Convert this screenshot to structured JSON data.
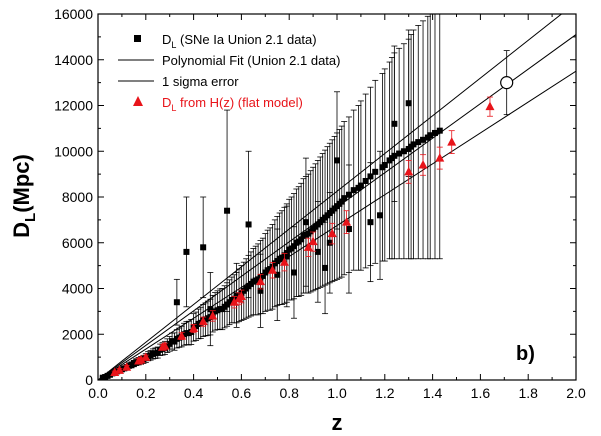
{
  "chart_data": {
    "type": "scatter",
    "panel_label": "b)",
    "xlabel": "z",
    "ylabel_main": "D",
    "ylabel_sub": "L",
    "ylabel_unit": "(Mpc)",
    "xlim": [
      0.0,
      2.0
    ],
    "ylim": [
      0,
      16000
    ],
    "x_ticks": [
      "0.0",
      "0.2",
      "0.4",
      "0.6",
      "0.8",
      "1.0",
      "1.2",
      "1.4",
      "1.6",
      "1.8",
      "2.0"
    ],
    "y_ticks": [
      "0",
      "2000",
      "4000",
      "6000",
      "8000",
      "10000",
      "12000",
      "14000",
      "16000"
    ],
    "grid": false,
    "legend_position": "top-left",
    "legend": [
      {
        "main": "D",
        "sub": "L",
        "rest": "  (SNe Ia Union 2.1 data)",
        "marker": "square",
        "color": "#000000"
      },
      {
        "main": "Polynomial Fit (Union 2.1 data)",
        "sub": "",
        "rest": "",
        "marker": "line",
        "color": "#000000"
      },
      {
        "main": "1 sigma error",
        "sub": "",
        "rest": "",
        "marker": "line",
        "color": "#000000"
      },
      {
        "main": "D",
        "sub": "L",
        "rest": " from H(z) (flat model)",
        "marker": "triangle",
        "color": "#e8141a"
      }
    ],
    "series": [
      {
        "name": "DL (SNe Ia Union 2.1 data)",
        "marker": "square",
        "color": "#000000",
        "x": [
          0.02,
          0.03,
          0.04,
          0.05,
          0.06,
          0.07,
          0.08,
          0.09,
          0.1,
          0.11,
          0.12,
          0.13,
          0.14,
          0.15,
          0.16,
          0.17,
          0.18,
          0.19,
          0.2,
          0.21,
          0.22,
          0.23,
          0.24,
          0.25,
          0.26,
          0.27,
          0.28,
          0.29,
          0.3,
          0.31,
          0.32,
          0.33,
          0.34,
          0.35,
          0.36,
          0.37,
          0.38,
          0.39,
          0.4,
          0.41,
          0.42,
          0.43,
          0.44,
          0.45,
          0.46,
          0.47,
          0.48,
          0.49,
          0.5,
          0.51,
          0.52,
          0.53,
          0.54,
          0.55,
          0.56,
          0.57,
          0.58,
          0.59,
          0.6,
          0.61,
          0.62,
          0.63,
          0.64,
          0.65,
          0.66,
          0.67,
          0.68,
          0.69,
          0.7,
          0.71,
          0.72,
          0.73,
          0.74,
          0.75,
          0.76,
          0.77,
          0.78,
          0.79,
          0.8,
          0.81,
          0.82,
          0.83,
          0.84,
          0.85,
          0.86,
          0.87,
          0.88,
          0.89,
          0.9,
          0.91,
          0.92,
          0.93,
          0.94,
          0.95,
          0.96,
          0.97,
          0.98,
          0.99,
          1.0,
          1.01,
          1.02,
          1.03,
          1.05,
          1.07,
          1.09,
          1.1,
          1.12,
          1.14,
          1.16,
          1.19,
          1.2,
          1.22,
          1.23,
          1.24,
          1.26,
          1.28,
          1.3,
          1.31,
          1.32,
          1.34,
          1.36,
          1.38,
          1.39,
          1.41,
          1.43,
          0.54,
          0.37,
          0.33,
          0.44,
          0.47,
          0.63,
          0.58,
          0.75,
          0.87,
          0.95,
          1.0,
          0.97,
          1.05,
          1.14,
          1.18,
          1.24,
          1.3,
          0.92,
          0.82,
          0.68,
          0.79
        ],
        "y": [
          100,
          130,
          180,
          230,
          290,
          330,
          380,
          420,
          470,
          510,
          560,
          630,
          660,
          720,
          780,
          820,
          860,
          900,
          960,
          1040,
          1080,
          1140,
          1170,
          1200,
          1320,
          1360,
          1400,
          1500,
          1580,
          1700,
          1680,
          1800,
          1850,
          1900,
          2000,
          2050,
          2050,
          2100,
          2300,
          2350,
          2450,
          2500,
          2600,
          2650,
          2700,
          2750,
          2900,
          3000,
          3050,
          3100,
          3100,
          3200,
          3300,
          3400,
          3500,
          3550,
          3600,
          3700,
          3800,
          3900,
          4000,
          4100,
          4200,
          4300,
          4350,
          4400,
          4500,
          4550,
          4700,
          4800,
          4850,
          4950,
          5100,
          5200,
          5300,
          5350,
          5450,
          5550,
          5700,
          5750,
          5850,
          6000,
          6050,
          6150,
          6300,
          6350,
          6400,
          6500,
          6600,
          6700,
          6800,
          6900,
          7000,
          7100,
          7200,
          7300,
          7400,
          7500,
          7600,
          7700,
          7800,
          7950,
          8100,
          8300,
          8400,
          8500,
          8700,
          8900,
          9100,
          9300,
          9400,
          9600,
          9700,
          9800,
          9900,
          10000,
          10100,
          10200,
          10300,
          10400,
          10500,
          10600,
          10700,
          10800,
          10900,
          7400,
          5600,
          3400,
          5800,
          3100,
          6800,
          3700,
          4600,
          6900,
          4900,
          9600,
          6000,
          6600,
          6900,
          7200,
          11200,
          12100,
          5600,
          4700,
          3900,
          5400
        ],
        "yerr": [
          30,
          30,
          40,
          50,
          60,
          60,
          70,
          80,
          90,
          100,
          110,
          120,
          130,
          140,
          150,
          160,
          170,
          180,
          190,
          200,
          210,
          220,
          230,
          240,
          250,
          270,
          290,
          300,
          320,
          350,
          380,
          400,
          420,
          450,
          480,
          500,
          520,
          550,
          600,
          620,
          650,
          680,
          700,
          720,
          750,
          780,
          800,
          820,
          850,
          880,
          900,
          920,
          950,
          980,
          1000,
          1050,
          1100,
          1150,
          1200,
          1250,
          1300,
          1350,
          1400,
          1450,
          1500,
          1550,
          1600,
          1650,
          1700,
          1750,
          1800,
          1850,
          1900,
          1950,
          2000,
          2050,
          2100,
          2150,
          2200,
          2250,
          2300,
          2350,
          2400,
          2450,
          2500,
          2550,
          2600,
          2650,
          2700,
          2750,
          2800,
          2850,
          2900,
          2950,
          3000,
          3050,
          3100,
          3150,
          3200,
          3250,
          3300,
          3350,
          3400,
          3500,
          3600,
          3700,
          3800,
          3900,
          4000,
          4100,
          4200,
          4300,
          4400,
          4500,
          4600,
          4700,
          4800,
          4900,
          5000,
          5100,
          5200,
          5300,
          5400,
          5500,
          5600,
          4400,
          2400,
          1000,
          2200,
          1600,
          3200,
          1400,
          2000,
          2800,
          2000,
          3000,
          2200,
          2800,
          2600,
          2800,
          3400,
          3200,
          2200,
          2000,
          1600,
          2200
        ]
      },
      {
        "name": "DL from H(z) (flat model)",
        "marker": "triangle",
        "color": "#e8141a",
        "x": [
          0.07,
          0.09,
          0.12,
          0.17,
          0.18,
          0.2,
          0.27,
          0.28,
          0.35,
          0.4,
          0.44,
          0.48,
          0.57,
          0.59,
          0.6,
          0.68,
          0.73,
          0.78,
          0.88,
          0.9,
          0.98,
          1.04,
          1.3,
          1.36,
          1.43,
          1.48,
          1.64
        ],
        "y": [
          330,
          420,
          560,
          830,
          880,
          990,
          1430,
          1480,
          1920,
          2250,
          2550,
          2800,
          3400,
          3550,
          3650,
          4300,
          4800,
          5150,
          5800,
          6050,
          6400,
          6900,
          9100,
          9400,
          9700,
          10400,
          11950
        ],
        "yerr": [
          60,
          80,
          80,
          100,
          90,
          100,
          120,
          130,
          150,
          180,
          200,
          230,
          250,
          260,
          280,
          320,
          340,
          380,
          400,
          420,
          450,
          500,
          500,
          450,
          480,
          500,
          420
        ]
      },
      {
        "name": "Open circle point",
        "marker": "circle-open",
        "color": "#000000",
        "x": [
          1.71
        ],
        "y": [
          13000
        ],
        "yerr": [
          1400
        ]
      }
    ],
    "lines": [
      {
        "name": "Polynomial Fit (Union 2.1 data)",
        "x": [
          0.0,
          2.0
        ],
        "y": [
          0,
          15100
        ]
      },
      {
        "name": "1 sigma error (upper)",
        "x": [
          0.0,
          2.0
        ],
        "y": [
          0,
          16500
        ]
      },
      {
        "name": "1 sigma error (lower)",
        "x": [
          0.0,
          2.0
        ],
        "y": [
          0,
          13500
        ]
      }
    ]
  }
}
